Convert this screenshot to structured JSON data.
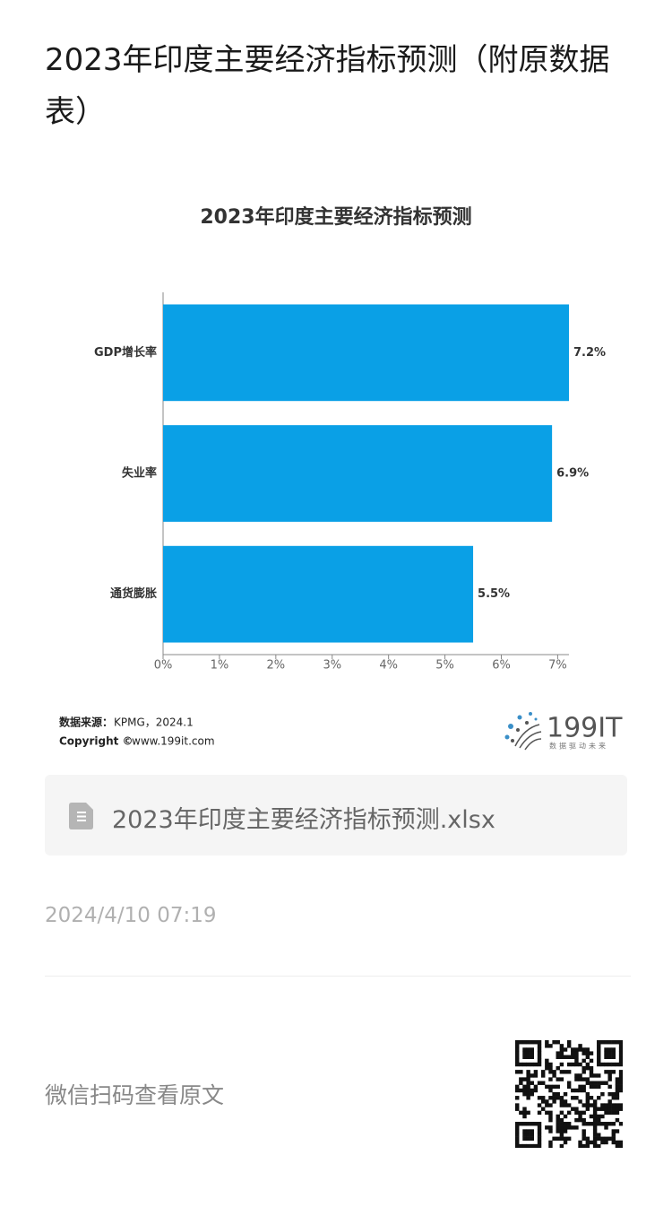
{
  "header": {
    "title": "2023年印度主要经济指标预测（附原数据表）"
  },
  "chart_data": {
    "type": "hbar",
    "title": "2023年印度主要经济指标预测",
    "categories": [
      "GDP增长率",
      "失业率",
      "通货膨胀"
    ],
    "values": [
      7.2,
      6.9,
      5.5
    ],
    "value_labels": [
      "7.2%",
      "6.9%",
      "5.5%"
    ],
    "color": "#0aa0e6",
    "xlim": [
      0,
      7.2
    ],
    "xticks": [
      {
        "value": 0,
        "label": "0%"
      },
      {
        "value": 1,
        "label": "1%"
      },
      {
        "value": 2,
        "label": "2%"
      },
      {
        "value": 3,
        "label": "3%"
      },
      {
        "value": 4,
        "label": "4%"
      },
      {
        "value": 5,
        "label": "5%"
      },
      {
        "value": 6,
        "label": "6%"
      },
      {
        "value": 7,
        "label": "7%"
      }
    ],
    "grid": false,
    "source_label": "数据来源：",
    "source": "KPMG，2024.1",
    "copyright_label": "Copyright ©",
    "copyright": "www.199it.com",
    "logo": "199IT",
    "logo_tagline": "数据驱动未来"
  },
  "attachment": {
    "filename": "2023年印度主要经济指标预测.xlsx"
  },
  "date": "2024/4/10 07:19",
  "footer": {
    "text": "微信扫码查看原文"
  }
}
